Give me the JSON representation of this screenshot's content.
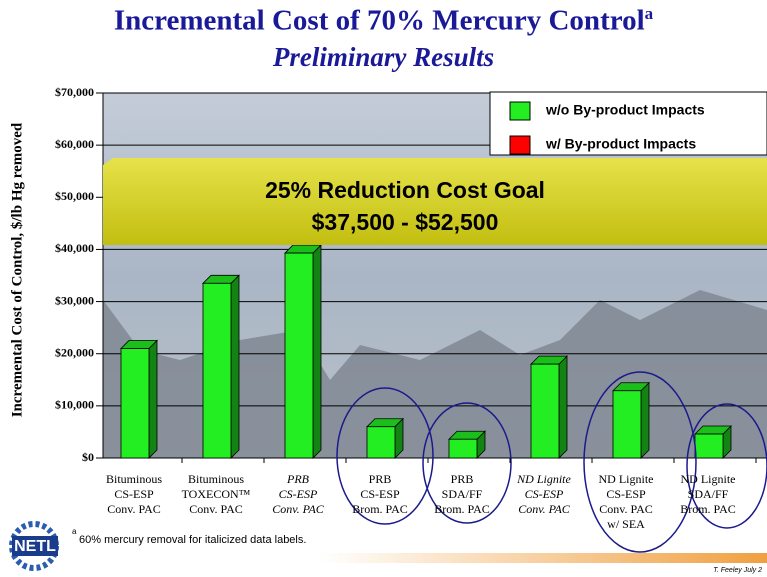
{
  "chart_data": {
    "type": "bar",
    "title": "Incremental Cost of 70% Mercury Control",
    "title_superscript": "a",
    "subtitle": "Preliminary Results",
    "y_label": "Incremental Cost of Control, $/lb Hg removed",
    "categories": [
      "Bituminous\nCS-ESP\nConv. PAC",
      "Bituminous\nTOXECON™\nConv. PAC",
      "PRB\nCS-ESP\nConv. PAC",
      "PRB\nCS-ESP\nBrom. PAC",
      "PRB\nSDA/FF\nBrom. PAC",
      "ND Lignite\nCS-ESP\nConv. PAC",
      "ND Lignite\nCS-ESP\nConv. PAC\nw/ SEA",
      "ND Lignite\nSDA/FF\nBrom. PAC"
    ],
    "italic_categories": [
      false,
      false,
      true,
      false,
      false,
      true,
      false,
      false
    ],
    "series": [
      {
        "name": "w/o By-product Impacts",
        "color": "#22ee22",
        "values": [
          21000,
          33500,
          39300,
          6000,
          3600,
          18000,
          12900,
          4600
        ]
      },
      {
        "name": "w/ By-product Impacts",
        "color": "#ff0000",
        "values": [
          null,
          null,
          null,
          null,
          null,
          null,
          null,
          null
        ]
      }
    ],
    "ylim": [
      0,
      70000
    ],
    "yticks": [
      {
        "value": 0,
        "label": "$0"
      },
      {
        "value": 10000,
        "label": "$10,000"
      },
      {
        "value": 20000,
        "label": "$20,000"
      },
      {
        "value": 30000,
        "label": "$30,000"
      },
      {
        "value": 40000,
        "label": "$40,000"
      },
      {
        "value": 50000,
        "label": "$50,000"
      },
      {
        "value": 60000,
        "label": "$60,000"
      },
      {
        "value": 70000,
        "label": "$70,000"
      }
    ],
    "grid": true,
    "legend": "upper right",
    "banner": [
      "25% Reduction Cost Goal",
      "$37,500 - $52,500"
    ],
    "footnote_marker": "a",
    "footnote": "60% mercury removal for italicized data labels.",
    "logo": "NETL",
    "credit": "T. Feeley July 2"
  }
}
